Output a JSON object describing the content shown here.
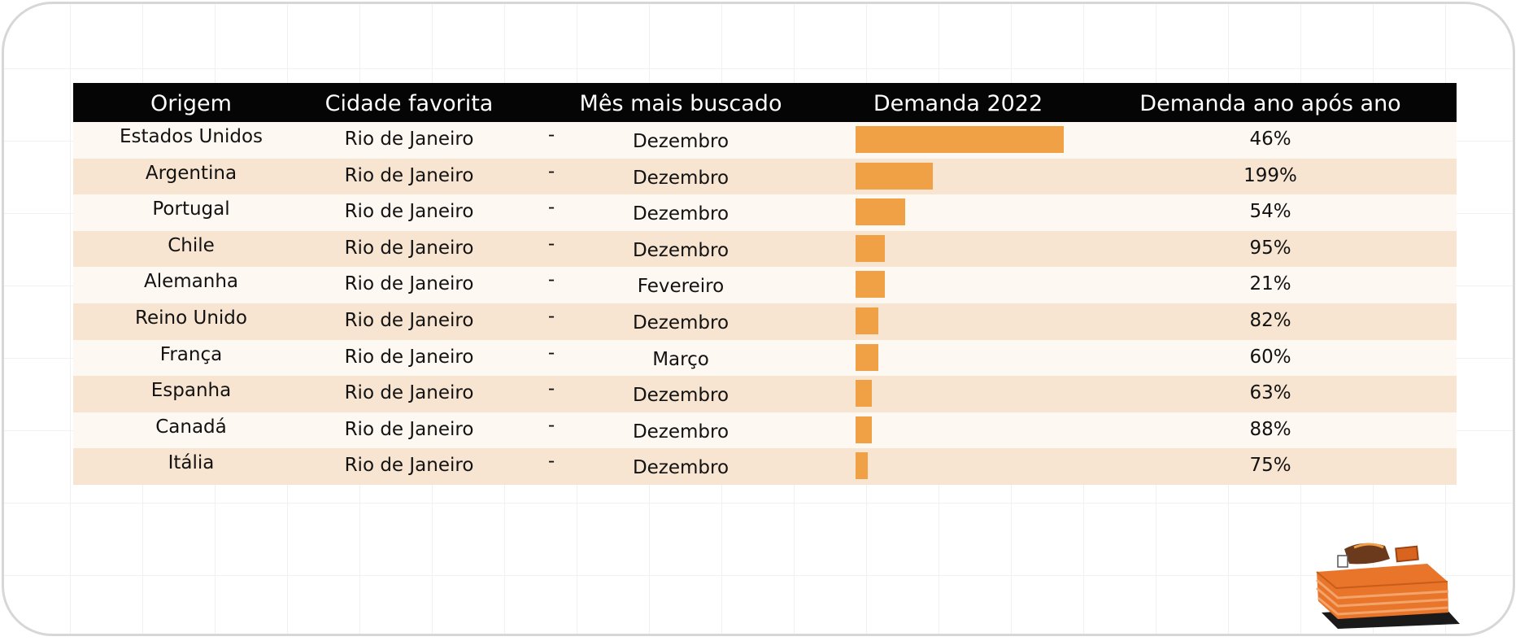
{
  "table": {
    "headers": {
      "origin": "Origem",
      "city": "Cidade favorita",
      "month": "Mês mais buscado",
      "demand": "Demanda 2022",
      "yoy": "Demanda ano após ano"
    },
    "dash": "-"
  },
  "colors": {
    "header_bg": "#050505",
    "bar": "#f0a045",
    "row_light": "#fdf8f1",
    "row_dark": "#f7e5d1"
  },
  "chart_data": {
    "type": "table",
    "columns": [
      "Origem",
      "Cidade favorita",
      "Mês mais buscado",
      "Demanda 2022",
      "Demanda ano após ano"
    ],
    "rows": [
      {
        "origin": "Estados Unidos",
        "city": "Rio de Janeiro",
        "month": "Dezembro",
        "demand": 1.0,
        "yoy": "46%"
      },
      {
        "origin": "Argentina",
        "city": "Rio de Janeiro",
        "month": "Dezembro",
        "demand": 0.37,
        "yoy": "199%"
      },
      {
        "origin": "Portugal",
        "city": "Rio de Janeiro",
        "month": "Dezembro",
        "demand": 0.24,
        "yoy": "54%"
      },
      {
        "origin": "Chile",
        "city": "Rio de Janeiro",
        "month": "Dezembro",
        "demand": 0.14,
        "yoy": "95%"
      },
      {
        "origin": "Alemanha",
        "city": "Rio de Janeiro",
        "month": "Fevereiro",
        "demand": 0.14,
        "yoy": "21%"
      },
      {
        "origin": "Reino Unido",
        "city": "Rio de Janeiro",
        "month": "Dezembro",
        "demand": 0.11,
        "yoy": "82%"
      },
      {
        "origin": "França",
        "city": "Rio de Janeiro",
        "month": "Março",
        "demand": 0.11,
        "yoy": "60%"
      },
      {
        "origin": "Espanha",
        "city": "Rio de Janeiro",
        "month": "Dezembro",
        "demand": 0.08,
        "yoy": "63%"
      },
      {
        "origin": "Canadá",
        "city": "Rio de Janeiro",
        "month": "Dezembro",
        "demand": 0.08,
        "yoy": "88%"
      },
      {
        "origin": "Itália",
        "city": "Rio de Janeiro",
        "month": "Dezembro",
        "demand": 0.06,
        "yoy": "75%"
      }
    ]
  }
}
